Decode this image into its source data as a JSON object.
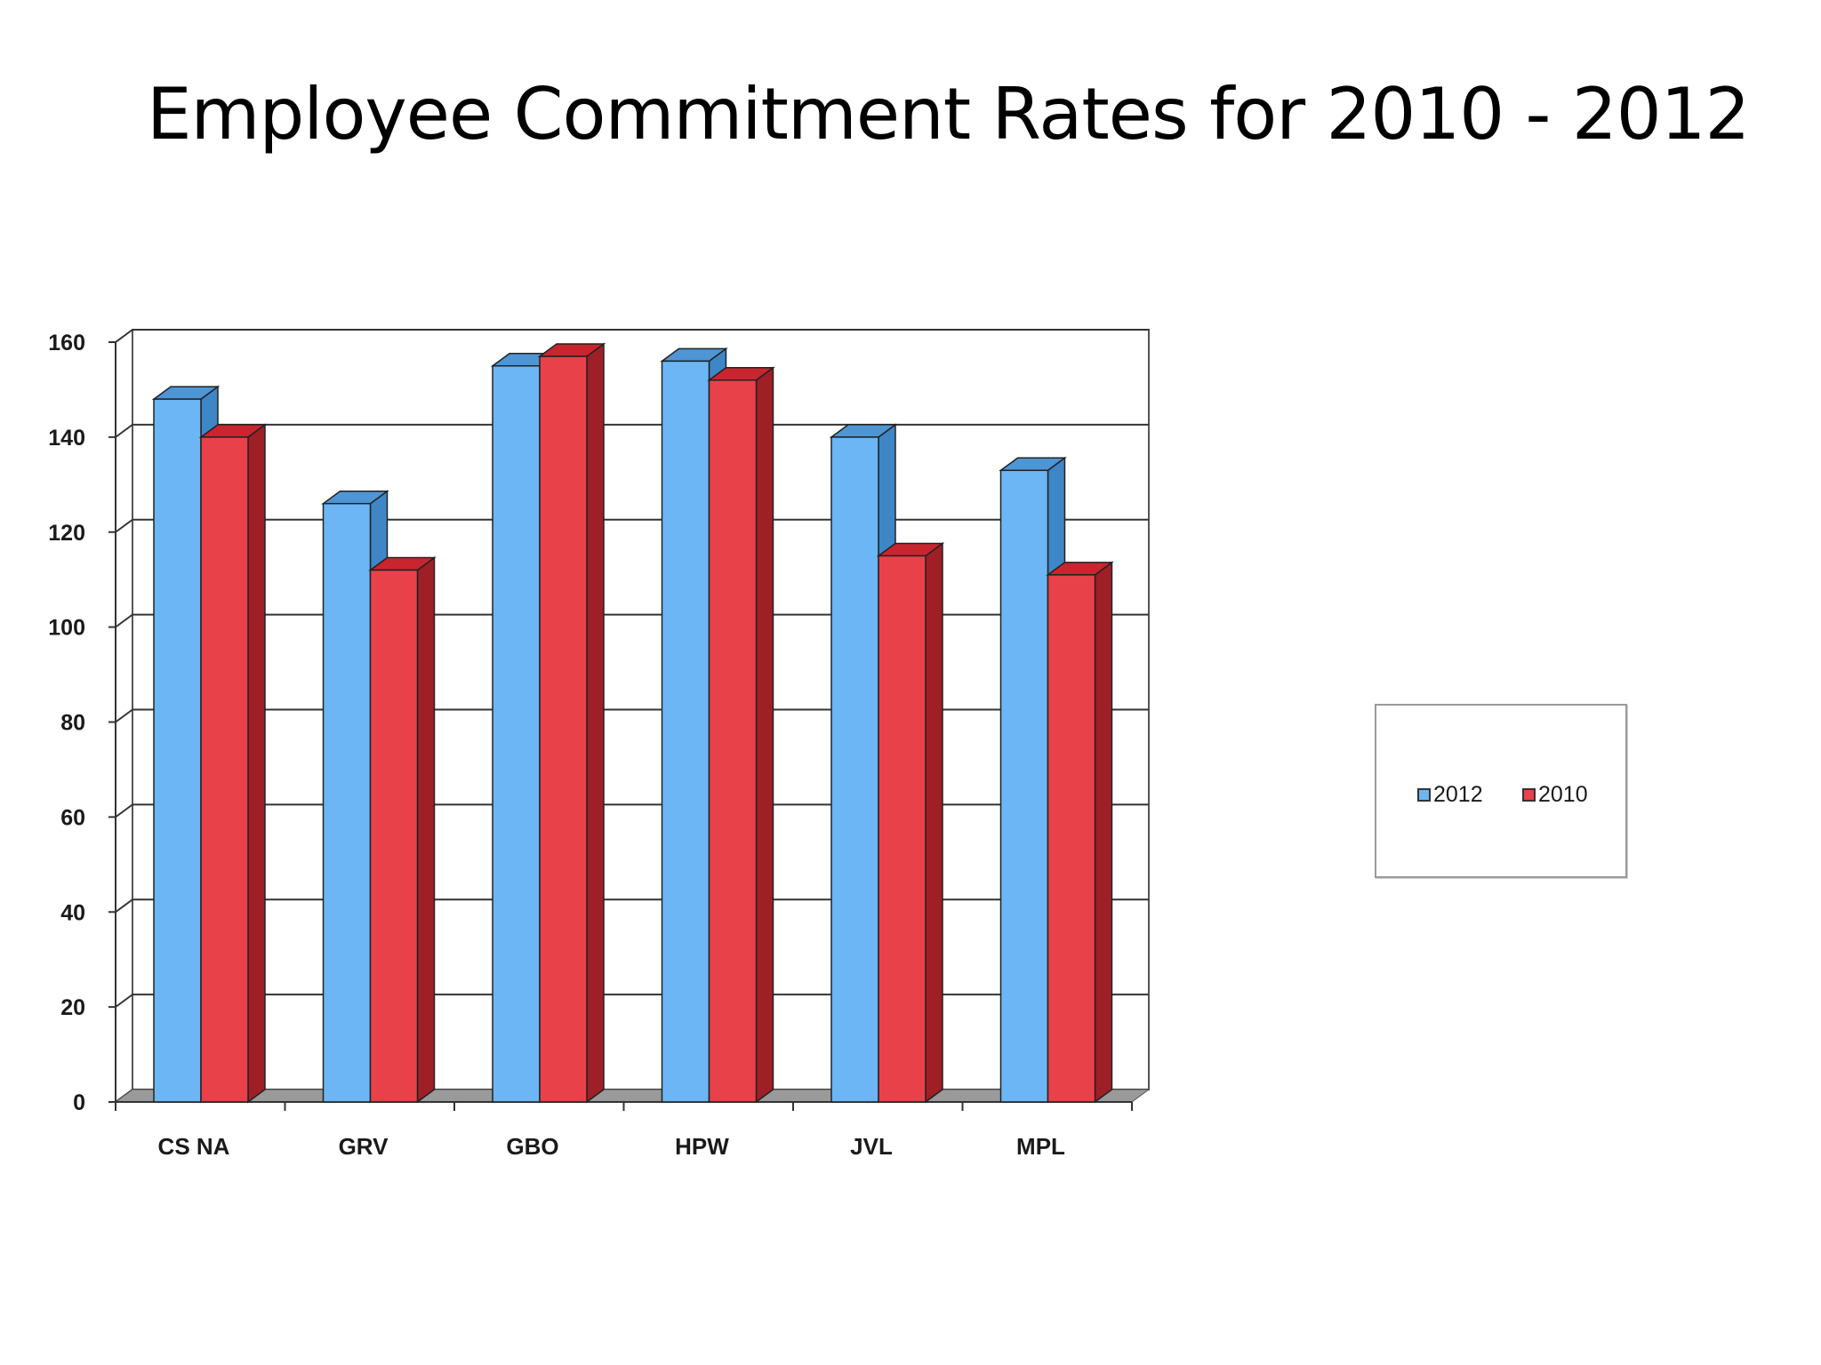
{
  "slide": {
    "title": "Employee Commitment Rates for 2010 - 2012"
  },
  "chart_data": {
    "type": "bar",
    "title": "",
    "xlabel": "",
    "ylabel": "",
    "categories": [
      "CS NA",
      "GRV",
      "GBO",
      "HPW",
      "JVL",
      "MPL"
    ],
    "series": [
      {
        "name": "2012",
        "values": [
          148,
          126,
          155,
          156,
          140,
          133
        ],
        "color": "#6cb6f5"
      },
      {
        "name": "2010",
        "values": [
          140,
          112,
          157,
          152,
          115,
          111
        ],
        "color": "#e8414a"
      }
    ],
    "ylim": [
      0,
      160
    ],
    "yticks": [
      "0",
      "20",
      "40",
      "60",
      "80",
      "100",
      "120",
      "140",
      "160"
    ],
    "grid": true,
    "legend_position": "right",
    "style": "3d-clustered-column"
  }
}
